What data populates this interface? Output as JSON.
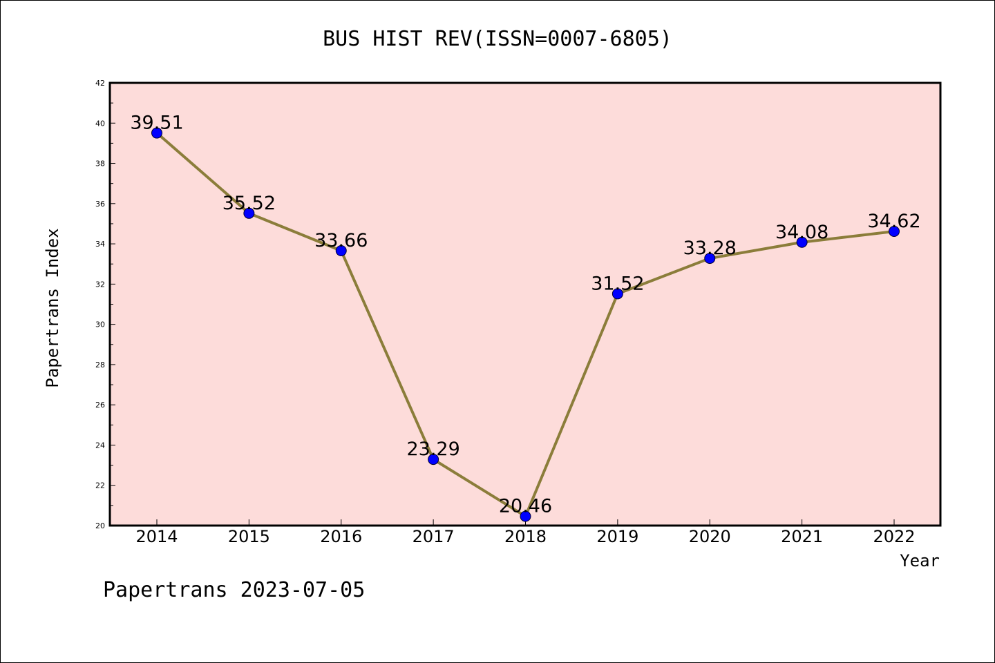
{
  "chart_data": {
    "type": "line",
    "title": "BUS HIST REV(ISSN=0007-6805)",
    "xlabel": "Year",
    "ylabel": "Papertrans Index",
    "footer": "Papertrans 2023-07-05",
    "categories": [
      "2014",
      "2015",
      "2016",
      "2017",
      "2018",
      "2019",
      "2020",
      "2021",
      "2022"
    ],
    "values": [
      39.51,
      35.52,
      33.66,
      23.29,
      20.46,
      31.52,
      33.28,
      34.08,
      34.62
    ],
    "data_labels": [
      "39.51",
      "35.52",
      "33.66",
      "23.29",
      "20.46",
      "31.52",
      "33.28",
      "34.08",
      "34.62"
    ],
    "ylim": [
      20,
      42
    ],
    "yticks": [
      20,
      22,
      24,
      26,
      28,
      30,
      32,
      34,
      36,
      38,
      40,
      42
    ],
    "grid": false,
    "legend": "none",
    "colors": {
      "plot_background": "#fddcda",
      "line": "#8b7d3a",
      "marker": "#0000ff",
      "axis": "#000000"
    }
  }
}
